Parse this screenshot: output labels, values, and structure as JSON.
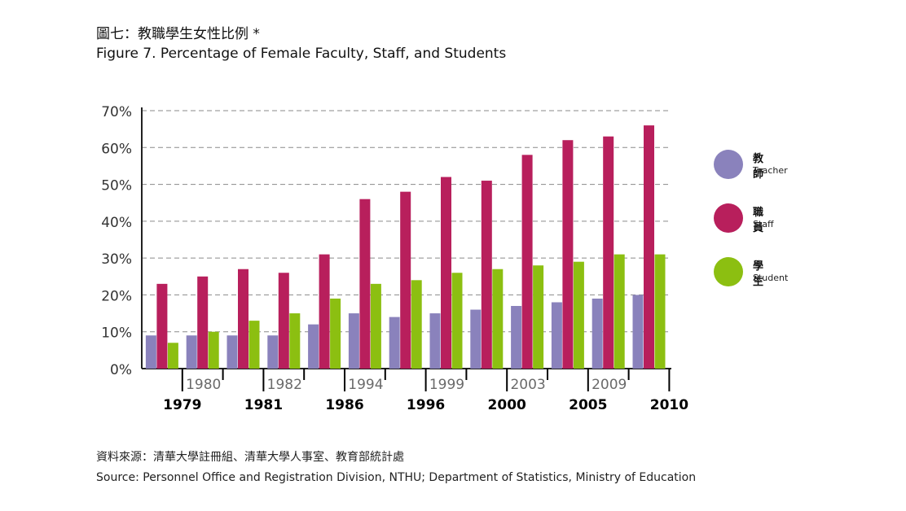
{
  "header": {
    "title_zh": "圖七：教職學生女性比例 *",
    "title_en": "Figure 7. Percentage of Female Faculty, Staff, and Students"
  },
  "footer": {
    "source_zh": "資料來源：清華大學註冊組、清華大學人事室、教育部統計處",
    "source_en": "Source: Personnel Office and Registration Division, NTHU; Department of Statistics, Ministry of Education"
  },
  "chart_data": {
    "type": "bar",
    "title": "Figure 7. Percentage of Female Faculty, Staff, and Students",
    "xlabel": "",
    "ylabel": "",
    "categories": [
      "1979",
      "1980",
      "1981",
      "1982",
      "1986",
      "1994",
      "1996",
      "1999",
      "2000",
      "2003",
      "2005",
      "2009",
      "2010"
    ],
    "ylim": [
      0,
      70
    ],
    "yticks": [
      "0%",
      "10%",
      "20%",
      "30%",
      "40%",
      "50%",
      "60%",
      "70%"
    ],
    "grid": "horizontal-dashed",
    "legend_position": "right",
    "series": [
      {
        "name_zh": "教師",
        "name": "Teacher",
        "color": "#8a82bc",
        "values": [
          9,
          9,
          9,
          9,
          12,
          15,
          14,
          15,
          16,
          17,
          18,
          19,
          20
        ]
      },
      {
        "name_zh": "職員",
        "name": "Staff",
        "color": "#b81f5c",
        "values": [
          23,
          25,
          27,
          26,
          31,
          46,
          48,
          52,
          51,
          58,
          62,
          63,
          66
        ]
      },
      {
        "name_zh": "學生",
        "name": "Student",
        "color": "#8cbf11",
        "values": [
          7,
          10,
          13,
          15,
          19,
          23,
          24,
          26,
          27,
          28,
          29,
          31,
          31
        ]
      }
    ]
  }
}
